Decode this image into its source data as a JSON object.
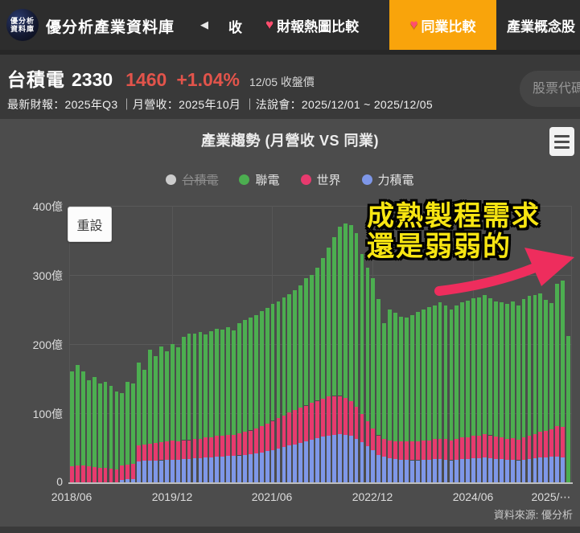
{
  "nav": {
    "logo_line1": "優分析",
    "logo_line2": "資料庫",
    "brand": "優分析產業資料庫",
    "collapse_icon": "◀",
    "collapsed_item": "收",
    "tabs": [
      {
        "label": "財報熱圖比較",
        "heart": "♥",
        "active": false
      },
      {
        "label": "同業比較",
        "heart": "♥",
        "active": true
      },
      {
        "label": "產業概念股",
        "heart": "",
        "active": false
      }
    ]
  },
  "stock": {
    "name": "台積電",
    "code": "2330",
    "price": "1460",
    "change": "+1.04%",
    "price_label": "12/05 收盤價",
    "meta": "最新財報：2025年Q3 ｜月營收：2025年10月 ｜法說會：2025/12/01 ~ 2025/12/05",
    "search_placeholder": "股票代碼"
  },
  "chart": {
    "title": "產業趨勢 (月營收 VS 同業)",
    "reset_button": "重設",
    "source": "資料來源: 優分析",
    "annotation_line1": "成熟製程需求",
    "annotation_line2": "還是弱弱的",
    "annotation_color": "#f7e512",
    "arrow_color": "#ee2d5d",
    "accent_orange": "#f9a40b",
    "price_red": "#e2544b",
    "legend": [
      {
        "label": "台積電",
        "color": "#cccccc",
        "hidden": true
      },
      {
        "label": "聯電",
        "color": "#4cae50",
        "hidden": false
      },
      {
        "label": "世界",
        "color": "#e73a6e",
        "hidden": false
      },
      {
        "label": "力積電",
        "color": "#7e97e8",
        "hidden": false
      }
    ]
  },
  "chart_data": {
    "type": "bar",
    "stacked": true,
    "title": "產業趨勢 (月營收 VS 同業)",
    "unit": "億 (新台幣)",
    "ylim": [
      0,
      400
    ],
    "yticks": [
      "0",
      "100億",
      "200億",
      "300億",
      "400億"
    ],
    "ytick_values": [
      0,
      100,
      200,
      300,
      400
    ],
    "xticks": [
      "2018/06",
      "2019/12",
      "2021/06",
      "2022/12",
      "2024/06",
      "2025/⋯"
    ],
    "xtick_indices": [
      0,
      18,
      36,
      54,
      72,
      90
    ],
    "grid": true,
    "legend_position": "top",
    "stack_order": [
      "力積電",
      "世界",
      "聯電"
    ],
    "categories": [
      "2018/06",
      "2018/07",
      "2018/08",
      "2018/09",
      "2018/10",
      "2018/11",
      "2018/12",
      "2019/01",
      "2019/02",
      "2019/03",
      "2019/04",
      "2019/05",
      "2019/06",
      "2019/07",
      "2019/08",
      "2019/09",
      "2019/10",
      "2019/11",
      "2019/12",
      "2020/01",
      "2020/02",
      "2020/03",
      "2020/04",
      "2020/05",
      "2020/06",
      "2020/07",
      "2020/08",
      "2020/09",
      "2020/10",
      "2020/11",
      "2020/12",
      "2021/01",
      "2021/02",
      "2021/03",
      "2021/04",
      "2021/05",
      "2021/06",
      "2021/07",
      "2021/08",
      "2021/09",
      "2021/10",
      "2021/11",
      "2021/12",
      "2022/01",
      "2022/02",
      "2022/03",
      "2022/04",
      "2022/05",
      "2022/06",
      "2022/07",
      "2022/08",
      "2022/09",
      "2022/10",
      "2022/11",
      "2022/12",
      "2023/01",
      "2023/02",
      "2023/03",
      "2023/04",
      "2023/05",
      "2023/06",
      "2023/07",
      "2023/08",
      "2023/09",
      "2023/10",
      "2023/11",
      "2023/12",
      "2024/01",
      "2024/02",
      "2024/03",
      "2024/04",
      "2024/05",
      "2024/06",
      "2024/07",
      "2024/08",
      "2024/09",
      "2024/10",
      "2024/11",
      "2024/12",
      "2025/01",
      "2025/02",
      "2025/03",
      "2025/04",
      "2025/05",
      "2025/06",
      "2025/07",
      "2025/08",
      "2025/09",
      "2025/10",
      "2025/11"
    ],
    "series": [
      {
        "name": "台積電",
        "color": "#cccccc",
        "visible": false,
        "values": []
      },
      {
        "name": "力積電",
        "color": "#7e97e8",
        "visible": true,
        "values": [
          0,
          0,
          0,
          0,
          0,
          0,
          0,
          0,
          0,
          4,
          5,
          5,
          30,
          31,
          31,
          32,
          32,
          33,
          33,
          33,
          34,
          34,
          35,
          35,
          36,
          36,
          37,
          37,
          38,
          38,
          39,
          40,
          41,
          42,
          43,
          45,
          47,
          49,
          51,
          53,
          55,
          57,
          59,
          62,
          64,
          66,
          68,
          69,
          70,
          69,
          67,
          63,
          58,
          52,
          46,
          40,
          37,
          35,
          34,
          33,
          33,
          32,
          32,
          33,
          33,
          34,
          34,
          33,
          32,
          33,
          34,
          34,
          35,
          35,
          36,
          35,
          34,
          34,
          33,
          33,
          32,
          33,
          34,
          35,
          36,
          36,
          37,
          37,
          36,
          0
        ]
      },
      {
        "name": "世界",
        "color": "#e73a6e",
        "visible": true,
        "values": [
          23,
          24,
          24,
          23,
          22,
          21,
          21,
          20,
          19,
          20,
          21,
          22,
          23,
          24,
          25,
          25,
          26,
          26,
          27,
          26,
          27,
          27,
          28,
          28,
          29,
          29,
          30,
          30,
          31,
          31,
          32,
          33,
          34,
          36,
          38,
          40,
          42,
          44,
          46,
          48,
          50,
          51,
          52,
          53,
          54,
          55,
          56,
          56,
          55,
          53,
          50,
          46,
          41,
          36,
          32,
          28,
          26,
          25,
          25,
          26,
          26,
          27,
          27,
          28,
          28,
          29,
          29,
          30,
          29,
          30,
          31,
          31,
          32,
          33,
          34,
          33,
          32,
          31,
          30,
          31,
          30,
          32,
          33,
          35,
          37,
          38,
          40,
          44,
          44,
          0
        ]
      },
      {
        "name": "聯電",
        "color": "#4cae50",
        "visible": true,
        "values": [
          137,
          146,
          136,
          125,
          130,
          122,
          124,
          120,
          113,
          105,
          119,
          116,
          120,
          108,
          136,
          126,
          139,
          131,
          140,
          136,
          149,
          154,
          152,
          154,
          149,
          154,
          155,
          154,
          155,
          151,
          159,
          162,
          163,
          164,
          167,
          167,
          169,
          169,
          171,
          171,
          173,
          177,
          184,
          185,
          192,
          204,
          216,
          230,
          245,
          253,
          255,
          251,
          231,
          222,
          217,
          197,
          167,
          190,
          186,
          181,
          179,
          183,
          187,
          189,
          193,
          193,
          197,
          193,
          189,
          193,
          196,
          198,
          199,
          200,
          201,
          198,
          196,
          196,
          195,
          198,
          194,
          200,
          203,
          201,
          200,
          190,
          182,
          206,
          212,
          212
        ]
      }
    ]
  }
}
